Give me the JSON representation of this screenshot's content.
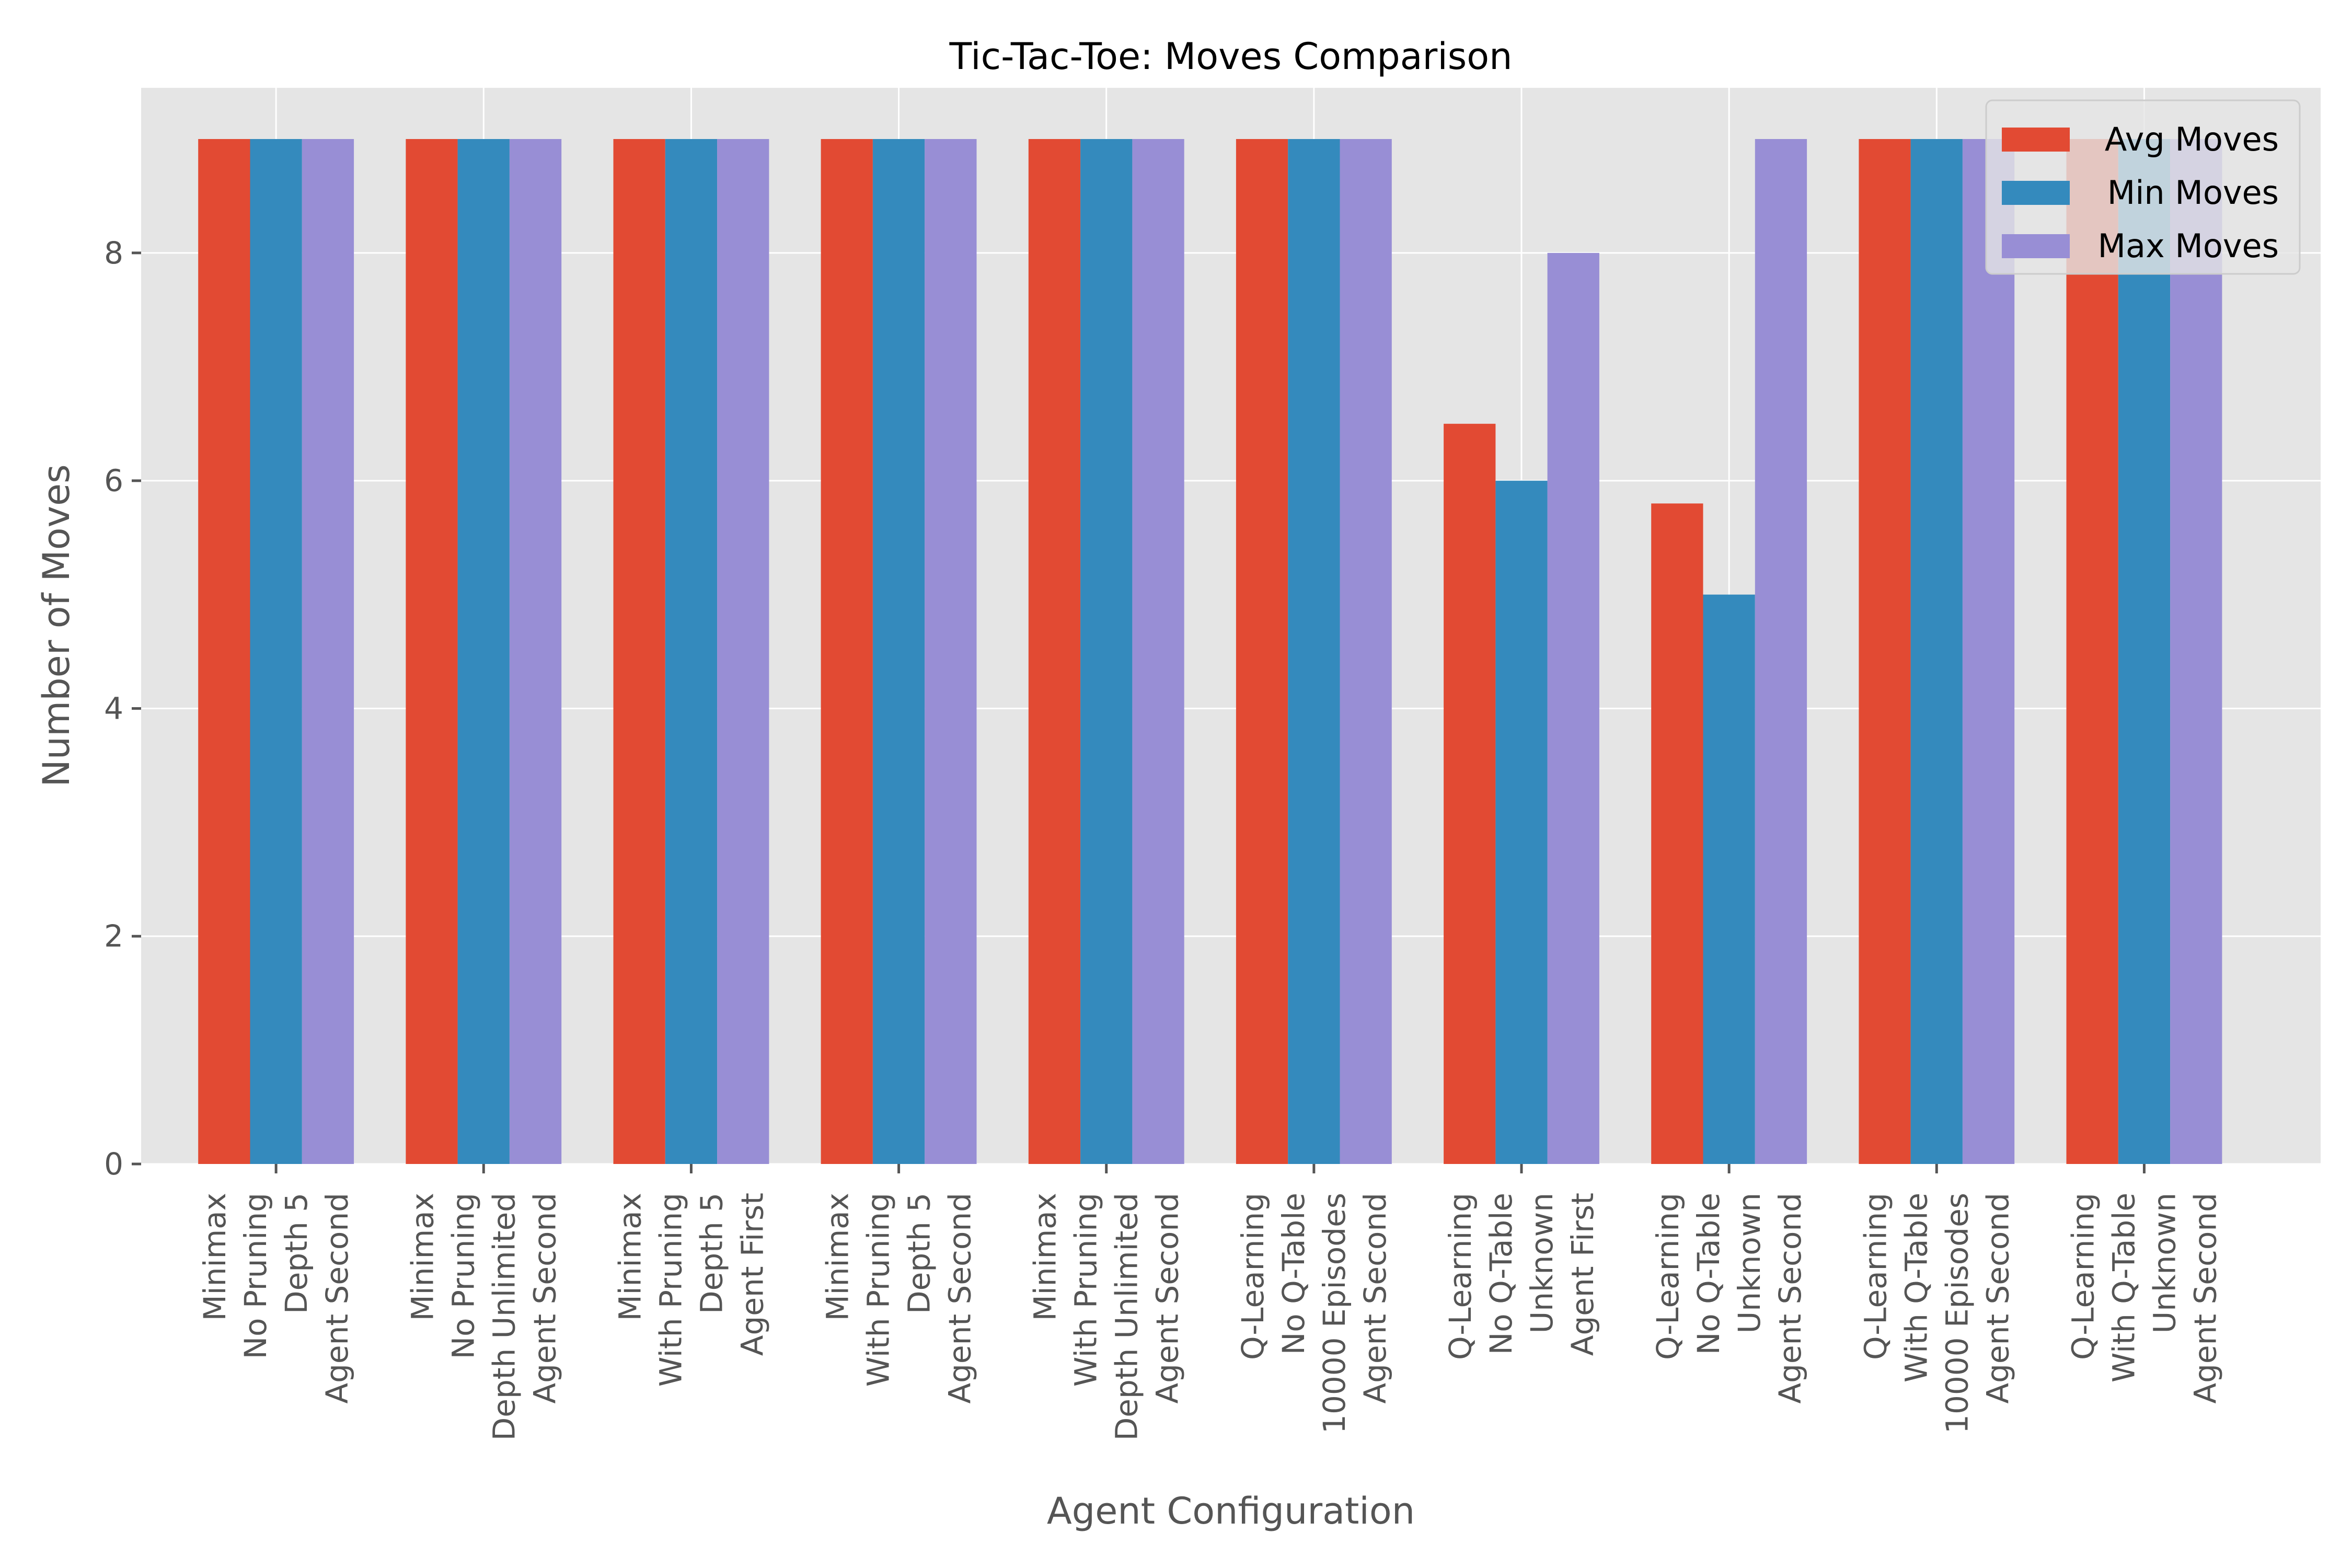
{
  "chart_data": {
    "type": "bar",
    "title": "Tic-Tac-Toe: Moves Comparison",
    "xlabel": "Agent Configuration",
    "ylabel": "Number of Moves",
    "ylim": [
      0,
      9.45
    ],
    "yticks": [
      "0",
      "2",
      "4",
      "6",
      "8"
    ],
    "grid": true,
    "legend_position": "top-right",
    "categories": [
      [
        "Minimax",
        "No Pruning",
        "Depth 5",
        "Agent Second"
      ],
      [
        "Minimax",
        "No Pruning",
        "Depth Unlimited",
        "Agent Second"
      ],
      [
        "Minimax",
        "With Pruning",
        "Depth 5",
        "Agent First"
      ],
      [
        "Minimax",
        "With Pruning",
        "Depth 5",
        "Agent Second"
      ],
      [
        "Minimax",
        "With Pruning",
        "Depth Unlimited",
        "Agent Second"
      ],
      [
        "Q-Learning",
        "No Q-Table",
        "10000 Episodes",
        "Agent Second"
      ],
      [
        "Q-Learning",
        "No Q-Table",
        "Unknown",
        "Agent First"
      ],
      [
        "Q-Learning",
        "No Q-Table",
        "Unknown",
        "Agent Second"
      ],
      [
        "Q-Learning",
        "With Q-Table",
        "10000 Episodes",
        "Agent Second"
      ],
      [
        "Q-Learning",
        "With Q-Table",
        "Unknown",
        "Agent Second"
      ]
    ],
    "series": [
      {
        "name": "Avg Moves",
        "color": "#E24A33",
        "values": [
          9,
          9,
          9,
          9,
          9,
          9,
          6.5,
          5.8,
          9,
          9
        ]
      },
      {
        "name": "Min Moves",
        "color": "#348ABD",
        "values": [
          9,
          9,
          9,
          9,
          9,
          9,
          6,
          5,
          9,
          9
        ]
      },
      {
        "name": "Max Moves",
        "color": "#988ED5",
        "values": [
          9,
          9,
          9,
          9,
          9,
          9,
          8,
          9,
          9,
          9
        ]
      }
    ]
  }
}
